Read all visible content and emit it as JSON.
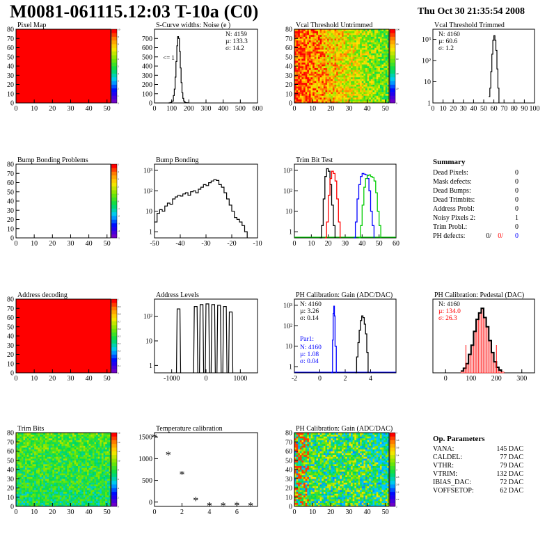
{
  "header": {
    "title": "M0081-061115.12:03 T-10a (C0)",
    "date": "Thu Oct 30 21:35:54 2008"
  },
  "colors": {
    "frame": "#000000",
    "hist_line": "#000000",
    "red": "#ff0000",
    "blue": "#0000ff",
    "green": "#00cc00"
  },
  "chart_data": [
    {
      "id": "pixel-map",
      "type": "heatmap",
      "title": "Pixel Map",
      "xlim": [
        0,
        52
      ],
      "ylim": [
        0,
        80
      ],
      "xticks": [
        0,
        10,
        20,
        30,
        40,
        50
      ],
      "yticks": [
        0,
        10,
        20,
        30,
        40,
        50,
        60,
        70,
        80
      ],
      "zlim": [
        0,
        10
      ],
      "zticks": [
        0,
        1,
        2,
        3,
        4,
        5,
        6,
        7,
        8,
        9,
        10
      ],
      "fill": "uniform",
      "value": 10
    },
    {
      "id": "scurve-noise",
      "type": "line",
      "title": "S-Curve widths: Noise (e )",
      "xlim": [
        0,
        600
      ],
      "ylim": [
        0,
        800
      ],
      "xticks": [
        0,
        100,
        200,
        300,
        400,
        500,
        600
      ],
      "yticks": [
        0,
        100,
        200,
        300,
        400,
        500,
        600,
        700
      ],
      "stats": [
        "N: 4159",
        "µ: 133.3",
        "σ: 14.2"
      ],
      "annotation": "<= 1",
      "x": [
        80,
        90,
        100,
        110,
        115,
        120,
        125,
        130,
        135,
        140,
        145,
        150,
        155,
        160,
        165,
        170,
        175,
        180,
        190,
        200
      ],
      "y": [
        0,
        5,
        20,
        80,
        150,
        280,
        450,
        620,
        720,
        700,
        560,
        380,
        220,
        110,
        50,
        20,
        8,
        3,
        1,
        0
      ]
    },
    {
      "id": "vcal-untrimmed",
      "type": "heatmap",
      "title": "Vcal Threshold Untrimmed",
      "xlim": [
        0,
        52
      ],
      "ylim": [
        0,
        80
      ],
      "xticks": [
        0,
        10,
        20,
        30,
        40,
        50
      ],
      "yticks": [
        0,
        10,
        20,
        30,
        40,
        50,
        60,
        70,
        80
      ],
      "zlim": [
        0,
        120
      ],
      "zticks": [
        0,
        20,
        40,
        60,
        80,
        100
      ],
      "fill": "gradient-x"
    },
    {
      "id": "vcal-trimmed",
      "type": "line",
      "title": "Vcal Threshold Trimmed",
      "log_y": true,
      "xlim": [
        0,
        100
      ],
      "ylim": [
        1,
        3000
      ],
      "xticks": [
        0,
        10,
        20,
        30,
        40,
        50,
        60,
        70,
        80,
        90,
        100
      ],
      "yticks": [
        "1",
        "10",
        "10²",
        "10³"
      ],
      "stats": [
        "N: 4160",
        "µ: 60.6",
        "σ:  1.2"
      ],
      "x": [
        55,
        56,
        57,
        58,
        59,
        60,
        61,
        62,
        63,
        64,
        65
      ],
      "y": [
        2,
        5,
        30,
        200,
        900,
        1500,
        900,
        300,
        40,
        5,
        1
      ]
    },
    {
      "id": "bump-problems",
      "type": "heatmap",
      "title": "Bump Bonding Problems",
      "xlim": [
        0,
        52
      ],
      "ylim": [
        0,
        80
      ],
      "xticks": [
        0,
        10,
        20,
        30,
        40,
        50
      ],
      "yticks": [
        0,
        10,
        20,
        30,
        40,
        50,
        60,
        70,
        80
      ],
      "zlim": [
        -5,
        5
      ],
      "zticks": [
        -5,
        -4,
        -3,
        -2,
        -1,
        0,
        1,
        2,
        3,
        4,
        5
      ],
      "fill": "empty"
    },
    {
      "id": "bump-bonding",
      "type": "line",
      "title": "Bump Bonding",
      "log_y": true,
      "xlim": [
        -50,
        -10
      ],
      "ylim": [
        0.5,
        2000
      ],
      "xticks": [
        -50,
        -40,
        -30,
        -20,
        -10
      ],
      "yticks": [
        "1",
        "10",
        "10²",
        "10³"
      ],
      "x": [
        -50,
        -49,
        -48,
        -47,
        -46,
        -45,
        -44,
        -43,
        -42,
        -41,
        -40,
        -39,
        -38,
        -37,
        -36,
        -35,
        -34,
        -33,
        -32,
        -31,
        -30,
        -29,
        -28,
        -27,
        -26,
        -25,
        -24,
        -23,
        -22,
        -21,
        -20,
        -19,
        -18,
        -17,
        -16,
        -15,
        -14
      ],
      "y": [
        3,
        8,
        12,
        10,
        18,
        25,
        22,
        40,
        50,
        60,
        55,
        70,
        80,
        60,
        90,
        100,
        80,
        120,
        150,
        200,
        180,
        250,
        300,
        350,
        320,
        200,
        150,
        80,
        40,
        20,
        10,
        5,
        4,
        3,
        2,
        1,
        0.5
      ]
    },
    {
      "id": "trim-bit-test",
      "type": "line",
      "title": "Trim Bit Test",
      "log_y": true,
      "xlim": [
        0,
        60
      ],
      "ylim": [
        0.5,
        2000
      ],
      "xticks": [
        0,
        10,
        20,
        30,
        40,
        50,
        60
      ],
      "yticks": [
        "1",
        "10",
        "10²",
        "10³"
      ],
      "series": [
        {
          "color": "#000000",
          "x": [
            15,
            16,
            17,
            18,
            19,
            20,
            21,
            22,
            23,
            24
          ],
          "y": [
            0.5,
            2,
            40,
            500,
            1200,
            900,
            200,
            20,
            2,
            0.5
          ]
        },
        {
          "color": "#ff0000",
          "x": [
            18,
            19,
            20,
            21,
            22,
            23,
            24,
            25,
            26,
            27
          ],
          "y": [
            0.5,
            3,
            60,
            400,
            900,
            700,
            300,
            40,
            3,
            0.5
          ]
        },
        {
          "color": "#0000ff",
          "x": [
            35,
            36,
            37,
            38,
            39,
            40,
            41,
            42,
            43,
            44,
            45,
            46,
            47
          ],
          "y": [
            0.5,
            3,
            40,
            200,
            500,
            700,
            650,
            600,
            400,
            100,
            10,
            2,
            0.5
          ]
        },
        {
          "color": "#00cc00",
          "x": [
            38,
            39,
            40,
            41,
            42,
            43,
            44,
            45,
            46,
            47,
            48,
            49,
            50,
            51
          ],
          "y": [
            0.5,
            2,
            20,
            150,
            400,
            550,
            600,
            500,
            450,
            300,
            80,
            10,
            2,
            0.5
          ]
        }
      ]
    },
    {
      "id": "address-decoding",
      "type": "heatmap",
      "title": "Address decoding",
      "xlim": [
        0,
        52
      ],
      "ylim": [
        0,
        80
      ],
      "xticks": [
        0,
        10,
        20,
        30,
        40,
        50
      ],
      "yticks": [
        0,
        10,
        20,
        30,
        40,
        50,
        60,
        70,
        80
      ],
      "zlim": [
        0,
        1
      ],
      "zticks": [
        0,
        0.1,
        0.2,
        0.3,
        0.4,
        0.5,
        0.6,
        0.7,
        0.8,
        0.9,
        1
      ],
      "fill": "uniform",
      "value": 1
    },
    {
      "id": "address-levels",
      "type": "line",
      "title": "Address Levels",
      "log_y": true,
      "xlim": [
        -1500,
        1500
      ],
      "ylim": [
        0.5,
        500
      ],
      "xticks": [
        -1000,
        0,
        1000
      ],
      "yticks": [
        "1",
        "10",
        "10²"
      ],
      "peaks_x": [
        -800,
        -300,
        -130,
        40,
        210,
        380,
        550,
        720
      ],
      "peaks_y": [
        200,
        250,
        300,
        320,
        300,
        280,
        250,
        150
      ]
    },
    {
      "id": "ph-gain",
      "type": "line",
      "title": "PH Calibration: Gain (ADC/DAC)",
      "log_y": true,
      "xlim": [
        -2,
        6
      ],
      "ylim": [
        0.5,
        2000
      ],
      "xticks": [
        -2,
        0,
        2,
        4
      ],
      "yticks": [
        "1",
        "10",
        "10²",
        "10³"
      ],
      "stats": [
        "N: 4160",
        "µ: 3.26",
        "σ: 0.14"
      ],
      "par_label": "Par1:",
      "par_stats": [
        "N: 4160",
        "µ: 1.08",
        "σ: 0.04"
      ],
      "series": [
        {
          "color": "#0000ff",
          "x": [
            0.9,
            1.0,
            1.05,
            1.1,
            1.15,
            1.2,
            1.3
          ],
          "y": [
            0.5,
            20,
            400,
            900,
            300,
            10,
            0.5
          ]
        },
        {
          "color": "#000000",
          "x": [
            2.8,
            2.9,
            3.0,
            3.1,
            3.2,
            3.3,
            3.4,
            3.5,
            3.6,
            3.7,
            3.8
          ],
          "y": [
            0.5,
            3,
            15,
            60,
            180,
            300,
            250,
            120,
            40,
            5,
            0.5
          ]
        }
      ]
    },
    {
      "id": "ph-pedestal",
      "type": "line",
      "title": "PH Calibration: Pedestal (DAC)",
      "xlim": [
        -50,
        350
      ],
      "ylim": [
        0,
        80
      ],
      "xticks": [
        0,
        100,
        200,
        300
      ],
      "stats": [
        "N: 4160",
        "µ: 134.0",
        "σ: 26.3"
      ],
      "x": [
        60,
        70,
        80,
        90,
        100,
        110,
        120,
        130,
        140,
        150,
        160,
        170,
        180,
        190,
        200,
        210,
        220
      ],
      "y": [
        2,
        5,
        10,
        20,
        30,
        45,
        58,
        65,
        70,
        60,
        50,
        35,
        22,
        12,
        6,
        3,
        1
      ]
    },
    {
      "id": "trim-bits",
      "type": "heatmap",
      "title": "Trim Bits",
      "xlim": [
        0,
        52
      ],
      "ylim": [
        0,
        80
      ],
      "xticks": [
        0,
        10,
        20,
        30,
        40,
        50
      ],
      "yticks": [
        0,
        10,
        20,
        30,
        40,
        50,
        60,
        70,
        80
      ],
      "zlim": [
        0,
        16
      ],
      "zticks": [
        0,
        2,
        4,
        6,
        8,
        10,
        12,
        14,
        16
      ],
      "fill": "noise-green"
    },
    {
      "id": "temperature-calibration",
      "type": "scatter",
      "title": "Temperature calibration",
      "xlim": [
        0,
        7.5
      ],
      "ylim": [
        -100,
        1600
      ],
      "xticks": [
        0,
        2,
        4,
        6
      ],
      "yticks": [
        0,
        500,
        1000,
        1500
      ],
      "x": [
        0,
        1,
        2,
        3,
        4,
        5,
        6,
        7
      ],
      "y": [
        1520,
        1110,
        660,
        60,
        -60,
        -60,
        -50,
        -60
      ]
    },
    {
      "id": "ph-gain-map",
      "type": "heatmap",
      "title": "PH Calibration: Gain (ADC/DAC)",
      "xlim": [
        0,
        52
      ],
      "ylim": [
        0,
        80
      ],
      "xticks": [
        0,
        10,
        20,
        30,
        40,
        50
      ],
      "yticks": [
        0,
        10,
        20,
        30,
        40,
        50,
        60,
        70,
        80
      ],
      "zlim": [
        2,
        4
      ],
      "zticks": [
        2,
        2.2,
        2.4,
        2.6,
        2.8,
        3,
        3.2,
        3.4,
        3.6,
        3.8,
        4
      ],
      "fill": "noise-mixed"
    }
  ],
  "summary": {
    "title": "Summary",
    "rows": [
      {
        "label": "Dead Pixels:",
        "value": "0"
      },
      {
        "label": "Mask defects:",
        "value": "0"
      },
      {
        "label": "Dead Bumps:",
        "value": "0"
      },
      {
        "label": "Dead Trimbits:",
        "value": "0"
      },
      {
        "label": "Address Probl:",
        "value": "0"
      },
      {
        "label": "Noisy Pixels 2:",
        "value": "1"
      },
      {
        "label": "Trim Probl.:",
        "value": "0"
      }
    ],
    "ph_label": "PH defects:",
    "ph_values": [
      "0/",
      "0/",
      "0"
    ]
  },
  "op_params": {
    "title": "Op. Parameters",
    "rows": [
      {
        "label": "VANA:",
        "value": "145 DAC"
      },
      {
        "label": "CALDEL:",
        "value": "77 DAC"
      },
      {
        "label": "VTHR:",
        "value": "79 DAC"
      },
      {
        "label": "VTRIM:",
        "value": "132 DAC"
      },
      {
        "label": "IBIAS_DAC:",
        "value": "72 DAC"
      },
      {
        "label": "VOFFSETOP:",
        "value": "62 DAC"
      }
    ]
  }
}
